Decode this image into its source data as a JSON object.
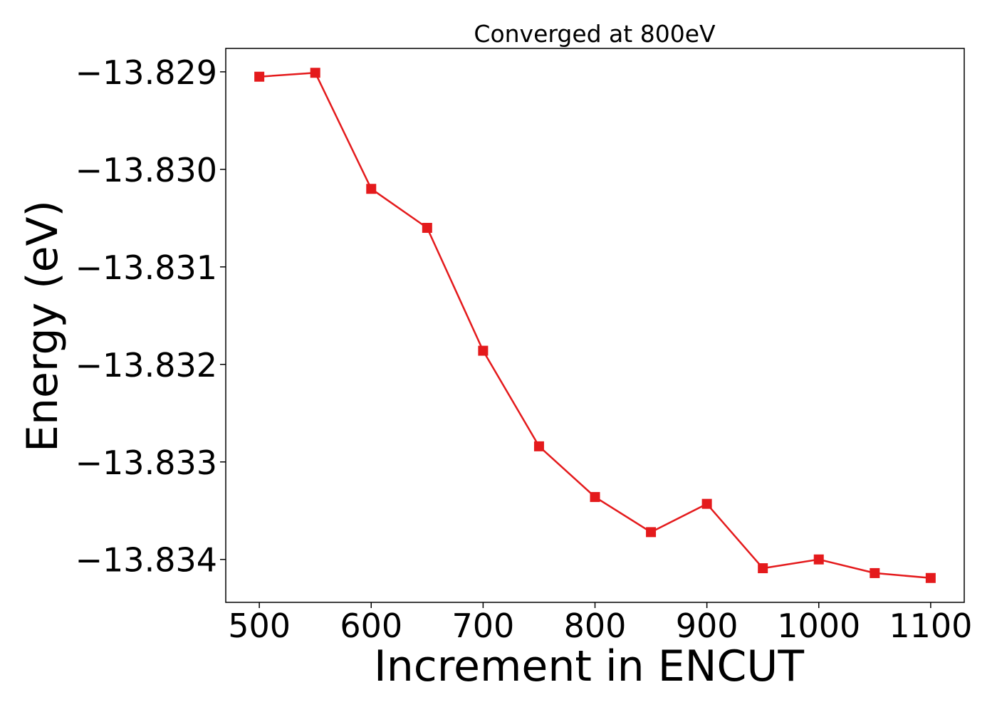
{
  "chart_data": {
    "type": "line",
    "title": "Converged at 800eV",
    "xlabel": "Increment in ENCUT",
    "ylabel": "Energy (eV)",
    "xlim": [
      470,
      1130
    ],
    "ylim": [
      -13.83444,
      -13.82876
    ],
    "x_ticks": [
      500,
      600,
      700,
      800,
      900,
      1000,
      1100
    ],
    "x_tick_labels": [
      "500",
      "600",
      "700",
      "800",
      "900",
      "1000",
      "1100"
    ],
    "y_ticks": [
      -13.829,
      -13.83,
      -13.831,
      -13.832,
      -13.833,
      -13.834
    ],
    "y_tick_labels": [
      "−13.829",
      "−13.830",
      "−13.831",
      "−13.832",
      "−13.833",
      "−13.834"
    ],
    "grid": false,
    "series": [
      {
        "color": "#e41a1c",
        "marker": "square",
        "x": [
          500,
          550,
          600,
          650,
          700,
          750,
          800,
          850,
          900,
          950,
          1000,
          1050,
          1100
        ],
        "y": [
          -13.82905,
          -13.82901,
          -13.8302,
          -13.8306,
          -13.83186,
          -13.83284,
          -13.83336,
          -13.83372,
          -13.83343,
          -13.83409,
          -13.834,
          -13.83414,
          -13.83419
        ]
      }
    ]
  }
}
